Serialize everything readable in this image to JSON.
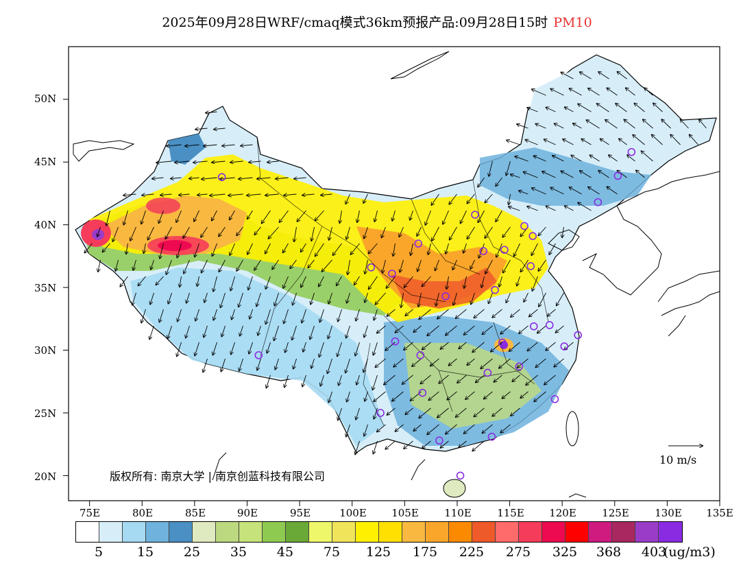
{
  "title": {
    "main": "2025年09月28日WRF/cmaq模式36km预报产品:09月28日15时",
    "pollutant": "PM10"
  },
  "map": {
    "lat_labels": [
      "50N",
      "45N",
      "40N",
      "35N",
      "30N",
      "25N",
      "20N"
    ],
    "lon_labels": [
      "75E",
      "80E",
      "85E",
      "90E",
      "95E",
      "100E",
      "105E",
      "110E",
      "115E",
      "120E",
      "125E",
      "130E",
      "135E"
    ]
  },
  "stations": [
    {
      "lon": 87.6,
      "lat": 43.8
    },
    {
      "lon": 91.1,
      "lat": 29.6
    },
    {
      "lon": 101.8,
      "lat": 36.6
    },
    {
      "lon": 103.8,
      "lat": 36.1
    },
    {
      "lon": 106.3,
      "lat": 38.5
    },
    {
      "lon": 104.1,
      "lat": 30.7
    },
    {
      "lon": 106.5,
      "lat": 29.6
    },
    {
      "lon": 108.9,
      "lat": 34.3
    },
    {
      "lon": 111.7,
      "lat": 40.8
    },
    {
      "lon": 112.5,
      "lat": 37.9
    },
    {
      "lon": 114.5,
      "lat": 38.0
    },
    {
      "lon": 116.4,
      "lat": 39.9
    },
    {
      "lon": 117.2,
      "lat": 39.1
    },
    {
      "lon": 113.6,
      "lat": 34.8
    },
    {
      "lon": 117.0,
      "lat": 36.7
    },
    {
      "lon": 114.3,
      "lat": 30.6
    },
    {
      "lon": 112.9,
      "lat": 28.2
    },
    {
      "lon": 115.9,
      "lat": 28.7
    },
    {
      "lon": 117.3,
      "lat": 31.9
    },
    {
      "lon": 118.8,
      "lat": 32.0
    },
    {
      "lon": 120.2,
      "lat": 30.3
    },
    {
      "lon": 121.5,
      "lat": 31.2
    },
    {
      "lon": 119.3,
      "lat": 26.1
    },
    {
      "lon": 113.3,
      "lat": 23.1
    },
    {
      "lon": 108.3,
      "lat": 22.8
    },
    {
      "lon": 102.7,
      "lat": 25.0
    },
    {
      "lon": 106.7,
      "lat": 26.6
    },
    {
      "lon": 110.3,
      "lat": 20.0
    },
    {
      "lon": 123.4,
      "lat": 41.8
    },
    {
      "lon": 125.3,
      "lat": 43.9
    },
    {
      "lon": 126.6,
      "lat": 45.8
    }
  ],
  "copyright": "版权所有: 南京大学 | 南京创蓝科技有限公司",
  "wind_reference": "10 m/s",
  "legend": {
    "colors": [
      "#ffffff",
      "#d7eef9",
      "#a6daf3",
      "#6fb2dd",
      "#4a90c4",
      "#dfeac0",
      "#bcd980",
      "#c6e27a",
      "#8fca50",
      "#6aa838",
      "#eef76a",
      "#f0e45a",
      "#fff000",
      "#ffe000",
      "#f9b840",
      "#faa62a",
      "#fb8a00",
      "#ef5a2a",
      "#ff6a6a",
      "#f53c5a",
      "#ee0a50",
      "#ff0000",
      "#cf1a80",
      "#a8285f",
      "#9a3cc8",
      "#8a2be2"
    ],
    "labels": [
      "5",
      "15",
      "25",
      "35",
      "45",
      "75",
      "125",
      "175",
      "225",
      "275",
      "325",
      "368",
      "403"
    ],
    "unit": "(ug/m3)"
  }
}
